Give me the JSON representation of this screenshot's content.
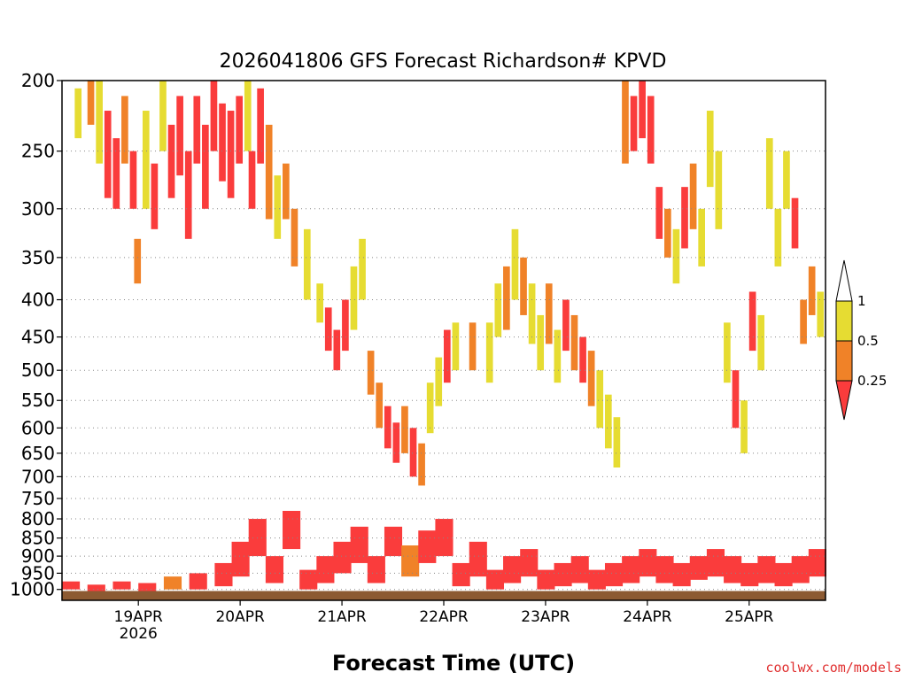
{
  "chart_data": {
    "type": "heatmap",
    "title": "2026041806 GFS Forecast Richardson# KPVD",
    "xlabel": "Forecast Time (UTC)",
    "ylabel": "",
    "credit": "coolwx.com/models",
    "x_ticks": [
      {
        "label": "19APR",
        "sub": "2026",
        "hour": 18
      },
      {
        "label": "20APR",
        "sub": "",
        "hour": 42
      },
      {
        "label": "21APR",
        "sub": "",
        "hour": 66
      },
      {
        "label": "22APR",
        "sub": "",
        "hour": 90
      },
      {
        "label": "23APR",
        "sub": "",
        "hour": 114
      },
      {
        "label": "24APR",
        "sub": "",
        "hour": 138
      },
      {
        "label": "25APR",
        "sub": "",
        "hour": 162
      }
    ],
    "xlim": [
      0,
      180
    ],
    "y_scale": "log",
    "ylim": [
      1035,
      200
    ],
    "y_ticks": [
      200,
      250,
      300,
      350,
      400,
      450,
      500,
      550,
      600,
      650,
      700,
      750,
      800,
      850,
      900,
      950,
      1000
    ],
    "grid": true,
    "legend": {
      "placement": "right",
      "bins": [
        {
          "label": "1",
          "color": "#ffffff"
        },
        {
          "label": "0.5",
          "color": "#e6dc32"
        },
        {
          "label": "0.25",
          "color": "#f08228"
        },
        {
          "label": "",
          "color": "#fa3c3c"
        }
      ],
      "ticks": [
        "1",
        "0.5",
        "0.25"
      ]
    },
    "colors": {
      "low": "#fa3c3c",
      "mid": "#f08228",
      "high": "#e6dc32",
      "ground": "#8c5a32"
    },
    "cells": [
      [
        3,
        205,
        240,
        "high"
      ],
      [
        6,
        200,
        230,
        "mid"
      ],
      [
        8,
        200,
        260,
        "high"
      ],
      [
        10,
        220,
        290,
        "low"
      ],
      [
        12,
        240,
        300,
        "low"
      ],
      [
        14,
        210,
        260,
        "mid"
      ],
      [
        16,
        250,
        300,
        "low"
      ],
      [
        17,
        330,
        380,
        "mid"
      ],
      [
        19,
        220,
        300,
        "high"
      ],
      [
        21,
        260,
        320,
        "low"
      ],
      [
        23,
        200,
        250,
        "high"
      ],
      [
        25,
        230,
        290,
        "low"
      ],
      [
        27,
        210,
        270,
        "low"
      ],
      [
        29,
        250,
        330,
        "low"
      ],
      [
        31,
        210,
        260,
        "low"
      ],
      [
        33,
        230,
        300,
        "low"
      ],
      [
        35,
        200,
        250,
        "low"
      ],
      [
        37,
        215,
        275,
        "low"
      ],
      [
        39,
        220,
        290,
        "low"
      ],
      [
        41,
        210,
        260,
        "low"
      ],
      [
        43,
        200,
        250,
        "high"
      ],
      [
        44,
        250,
        300,
        "low"
      ],
      [
        46,
        205,
        260,
        "low"
      ],
      [
        48,
        230,
        310,
        "mid"
      ],
      [
        50,
        270,
        330,
        "high"
      ],
      [
        52,
        260,
        310,
        "mid"
      ],
      [
        54,
        300,
        360,
        "mid"
      ],
      [
        57,
        320,
        400,
        "high"
      ],
      [
        60,
        380,
        430,
        "high"
      ],
      [
        62,
        410,
        470,
        "low"
      ],
      [
        64,
        440,
        500,
        "low"
      ],
      [
        66,
        400,
        470,
        "low"
      ],
      [
        68,
        360,
        440,
        "high"
      ],
      [
        70,
        330,
        400,
        "high"
      ],
      [
        72,
        470,
        540,
        "mid"
      ],
      [
        74,
        520,
        600,
        "mid"
      ],
      [
        76,
        560,
        640,
        "low"
      ],
      [
        78,
        590,
        670,
        "low"
      ],
      [
        80,
        560,
        650,
        "mid"
      ],
      [
        82,
        600,
        700,
        "low"
      ],
      [
        84,
        630,
        720,
        "mid"
      ],
      [
        86,
        520,
        610,
        "high"
      ],
      [
        88,
        480,
        560,
        "high"
      ],
      [
        90,
        440,
        520,
        "low"
      ],
      [
        92,
        430,
        500,
        "high"
      ],
      [
        96,
        430,
        500,
        "mid"
      ],
      [
        100,
        430,
        520,
        "high"
      ],
      [
        102,
        380,
        450,
        "high"
      ],
      [
        104,
        360,
        440,
        "mid"
      ],
      [
        106,
        320,
        400,
        "high"
      ],
      [
        108,
        350,
        420,
        "mid"
      ],
      [
        110,
        380,
        460,
        "high"
      ],
      [
        112,
        420,
        500,
        "high"
      ],
      [
        114,
        380,
        460,
        "mid"
      ],
      [
        116,
        440,
        520,
        "high"
      ],
      [
        118,
        400,
        470,
        "low"
      ],
      [
        120,
        420,
        500,
        "mid"
      ],
      [
        122,
        450,
        520,
        "low"
      ],
      [
        124,
        470,
        560,
        "mid"
      ],
      [
        126,
        500,
        600,
        "high"
      ],
      [
        128,
        540,
        640,
        "high"
      ],
      [
        130,
        580,
        680,
        "high"
      ],
      [
        132,
        200,
        260,
        "mid"
      ],
      [
        134,
        210,
        250,
        "low"
      ],
      [
        136,
        200,
        240,
        "low"
      ],
      [
        138,
        210,
        260,
        "low"
      ],
      [
        140,
        280,
        330,
        "low"
      ],
      [
        142,
        300,
        350,
        "mid"
      ],
      [
        144,
        320,
        380,
        "high"
      ],
      [
        146,
        280,
        340,
        "low"
      ],
      [
        148,
        260,
        320,
        "mid"
      ],
      [
        150,
        300,
        360,
        "high"
      ],
      [
        152,
        220,
        280,
        "high"
      ],
      [
        154,
        250,
        320,
        "high"
      ],
      [
        156,
        430,
        520,
        "high"
      ],
      [
        158,
        500,
        600,
        "low"
      ],
      [
        160,
        550,
        650,
        "high"
      ],
      [
        162,
        390,
        470,
        "low"
      ],
      [
        164,
        420,
        500,
        "high"
      ],
      [
        166,
        240,
        300,
        "high"
      ],
      [
        168,
        300,
        360,
        "high"
      ],
      [
        170,
        250,
        300,
        "high"
      ],
      [
        172,
        290,
        340,
        "low"
      ],
      [
        174,
        400,
        460,
        "mid"
      ],
      [
        176,
        360,
        420,
        "mid"
      ],
      [
        178,
        390,
        450,
        "high"
      ]
    ],
    "low_level": [
      [
        0,
        975,
        1000,
        "low"
      ],
      [
        6,
        985,
        1005,
        "low"
      ],
      [
        12,
        975,
        1000,
        "low"
      ],
      [
        18,
        980,
        1005,
        "low"
      ],
      [
        24,
        960,
        1000,
        "mid"
      ],
      [
        30,
        950,
        1000,
        "low"
      ],
      [
        36,
        920,
        990,
        "low"
      ],
      [
        40,
        860,
        960,
        "low"
      ],
      [
        44,
        800,
        900,
        "low"
      ],
      [
        48,
        900,
        980,
        "low"
      ],
      [
        52,
        780,
        880,
        "low"
      ],
      [
        56,
        940,
        1000,
        "low"
      ],
      [
        60,
        900,
        980,
        "low"
      ],
      [
        64,
        860,
        950,
        "low"
      ],
      [
        68,
        820,
        920,
        "low"
      ],
      [
        72,
        900,
        980,
        "low"
      ],
      [
        76,
        820,
        900,
        "low"
      ],
      [
        80,
        870,
        960,
        "mid"
      ],
      [
        84,
        830,
        920,
        "low"
      ],
      [
        88,
        800,
        900,
        "low"
      ],
      [
        92,
        920,
        990,
        "low"
      ],
      [
        96,
        860,
        960,
        "low"
      ],
      [
        100,
        940,
        1000,
        "low"
      ],
      [
        104,
        900,
        980,
        "low"
      ],
      [
        108,
        880,
        960,
        "low"
      ],
      [
        112,
        940,
        1000,
        "low"
      ],
      [
        116,
        920,
        990,
        "low"
      ],
      [
        120,
        900,
        980,
        "low"
      ],
      [
        124,
        940,
        1000,
        "low"
      ],
      [
        128,
        920,
        990,
        "low"
      ],
      [
        132,
        900,
        980,
        "low"
      ],
      [
        136,
        880,
        960,
        "low"
      ],
      [
        140,
        900,
        980,
        "low"
      ],
      [
        144,
        920,
        990,
        "low"
      ],
      [
        148,
        900,
        970,
        "low"
      ],
      [
        152,
        880,
        960,
        "low"
      ],
      [
        156,
        900,
        980,
        "low"
      ],
      [
        160,
        920,
        990,
        "low"
      ],
      [
        164,
        900,
        980,
        "low"
      ],
      [
        168,
        920,
        990,
        "low"
      ],
      [
        172,
        900,
        980,
        "low"
      ],
      [
        176,
        880,
        960,
        "low"
      ]
    ]
  }
}
